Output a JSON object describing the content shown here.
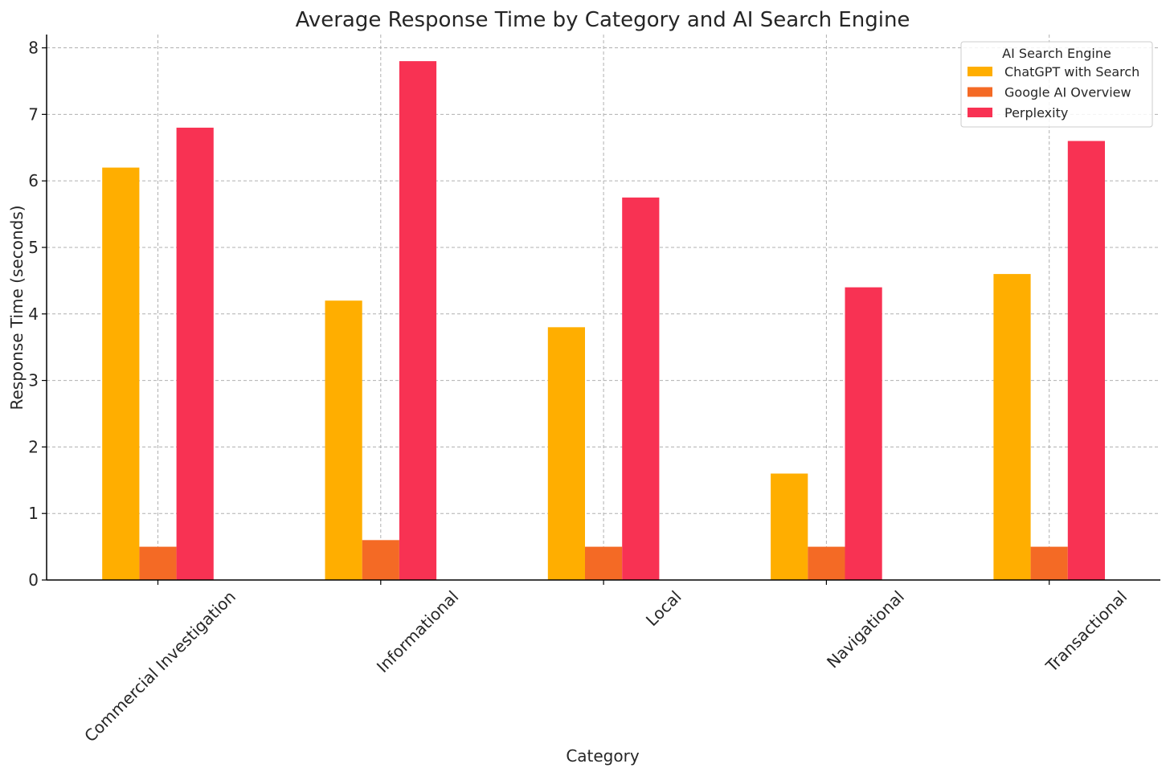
{
  "chart_data": {
    "type": "bar",
    "title": "Average Response Time by Category and AI Search Engine",
    "xlabel": "Category",
    "ylabel": "Response Time (seconds)",
    "categories": [
      "Commercial Investigation",
      "Informational",
      "Local",
      "Navigational",
      "Transactional"
    ],
    "ylim": [
      0,
      8.2
    ],
    "yticks": [
      0,
      1,
      2,
      3,
      4,
      5,
      6,
      7,
      8
    ],
    "grid": true,
    "legend": {
      "title": "AI Search Engine",
      "placement": "top-right"
    },
    "series": [
      {
        "name": "ChatGPT with Search",
        "color": "#ffae00",
        "values": [
          6.2,
          4.2,
          3.8,
          1.6,
          4.6
        ]
      },
      {
        "name": "Google AI Overview",
        "color": "#f46a25",
        "values": [
          0.5,
          0.6,
          0.5,
          0.5,
          0.5
        ]
      },
      {
        "name": "Perplexity",
        "color": "#f83253",
        "values": [
          6.8,
          7.8,
          5.75,
          4.4,
          6.6
        ]
      }
    ]
  }
}
